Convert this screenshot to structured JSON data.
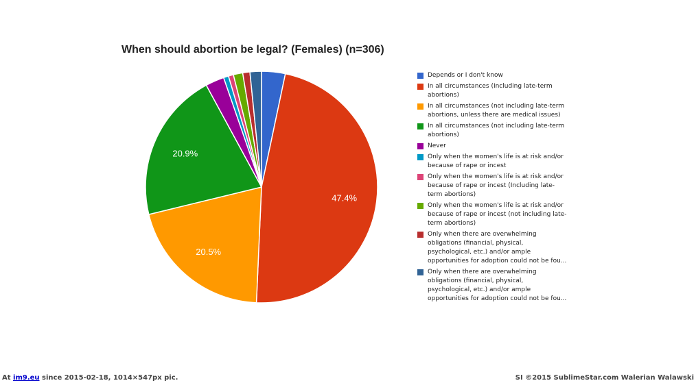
{
  "chart_data": {
    "type": "pie",
    "title": "When should abortion be legal? (Females) (n=306)",
    "slices": [
      {
        "label": "Depends or I don't know",
        "value": 3.3,
        "color": "#3366cc",
        "data_label": ""
      },
      {
        "label": "In all circumstances (Including late-term abortions)",
        "value": 47.4,
        "color": "#dc3912",
        "data_label": "47.4%"
      },
      {
        "label": "In all circumstances (not including late-term abortions, unless there are medical issues)",
        "value": 20.5,
        "color": "#ff9900",
        "data_label": "20.5%"
      },
      {
        "label": "In all circumstances (not including late-term abortions)",
        "value": 20.9,
        "color": "#109618",
        "data_label": "20.9%"
      },
      {
        "label": "Never",
        "value": 2.6,
        "color": "#990099",
        "data_label": ""
      },
      {
        "label": "Only when the women's life is at risk and/or because of rape or incest",
        "value": 0.7,
        "color": "#0099c6",
        "data_label": ""
      },
      {
        "label": "Only when the women's life is at risk and/or because of rape or incest (Including late-term abortions)",
        "value": 0.7,
        "color": "#dd4477",
        "data_label": ""
      },
      {
        "label": "Only when the women's life is at risk and/or because of rape or incest (not including late-term abortions)",
        "value": 1.3,
        "color": "#66aa00",
        "data_label": ""
      },
      {
        "label": "Only when there are overwhelming obligations (financial, physical, psychological, etc.) and/or ample opportunities for adoption could not be fou...",
        "value": 1.0,
        "color": "#b82e2e",
        "data_label": ""
      },
      {
        "label": "Only when there are overwhelming obligations (financial, physical, psychological, etc.) and/or ample opportunities for adoption could not be fou...",
        "value": 1.6,
        "color": "#316395",
        "data_label": ""
      }
    ],
    "legend_lines": [
      [
        "Depends or I don't know"
      ],
      [
        "In all circumstances (Including late-term",
        "abortions)"
      ],
      [
        "In all circumstances (not including late-term",
        "abortions, unless there are medical issues)"
      ],
      [
        "In all circumstances (not including late-term",
        "abortions)"
      ],
      [
        "Never"
      ],
      [
        "Only when the women's life is at risk and/or",
        "because of rape or incest"
      ],
      [
        "Only when the women's life is at risk and/or",
        "because of rape or incest (Including late-",
        "term abortions)"
      ],
      [
        "Only when the women's life is at risk and/or",
        "because of rape or incest (not including late-",
        "term abortions)"
      ],
      [
        "Only when there are overwhelming",
        "obligations (financial, physical,",
        "psychological, etc.) and/or ample",
        "opportunities for adoption could not be fou..."
      ],
      [
        "Only when there are overwhelming",
        "obligations (financial, physical,",
        "psychological, etc.) and/or ample",
        "opportunities for adoption could not be fou..."
      ]
    ],
    "legend_position": "right"
  },
  "footer": {
    "left_prefix": "At",
    "left_link": "im9.eu",
    "left_suffix": "since 2015-02-18, 1014×547px pic.",
    "right": "SI ©2015 SublimeStar.com Walerian Walawski"
  }
}
